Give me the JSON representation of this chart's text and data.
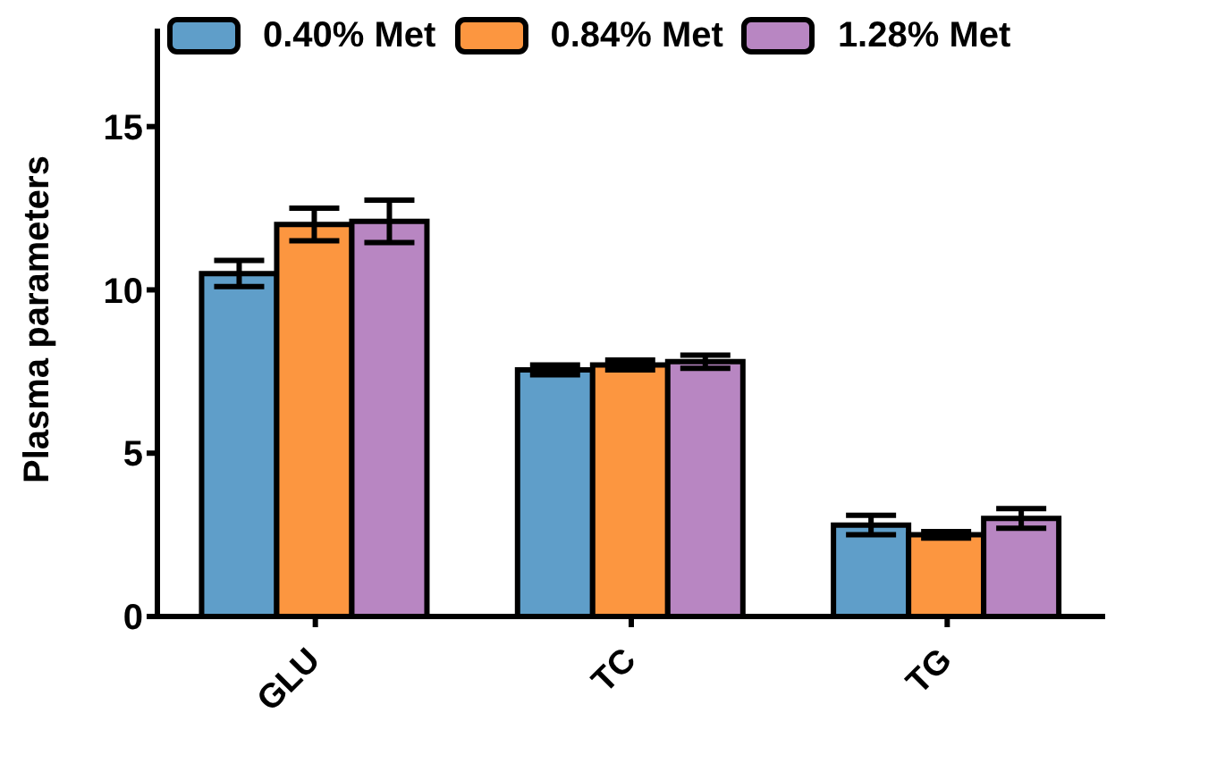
{
  "chart_data": {
    "type": "bar",
    "ylabel": "Plasma parameters",
    "categories": [
      "GLU",
      "TC",
      "TG"
    ],
    "series": [
      {
        "name": "0.40% Met",
        "color": "#5f9ec9",
        "values": [
          10.5,
          7.55,
          2.8
        ],
        "errors": [
          0.4,
          0.15,
          0.3
        ]
      },
      {
        "name": "0.84% Met",
        "color": "#fc9640",
        "values": [
          12.0,
          7.7,
          2.5
        ],
        "errors": [
          0.5,
          0.15,
          0.1
        ]
      },
      {
        "name": "1.28% Met",
        "color": "#b886c2",
        "values": [
          12.1,
          7.8,
          3.0
        ],
        "errors": [
          0.65,
          0.2,
          0.3
        ]
      }
    ],
    "ylim": [
      0,
      18
    ],
    "yticks": [
      0,
      5,
      10,
      15
    ],
    "grid": false,
    "legend": "top"
  }
}
